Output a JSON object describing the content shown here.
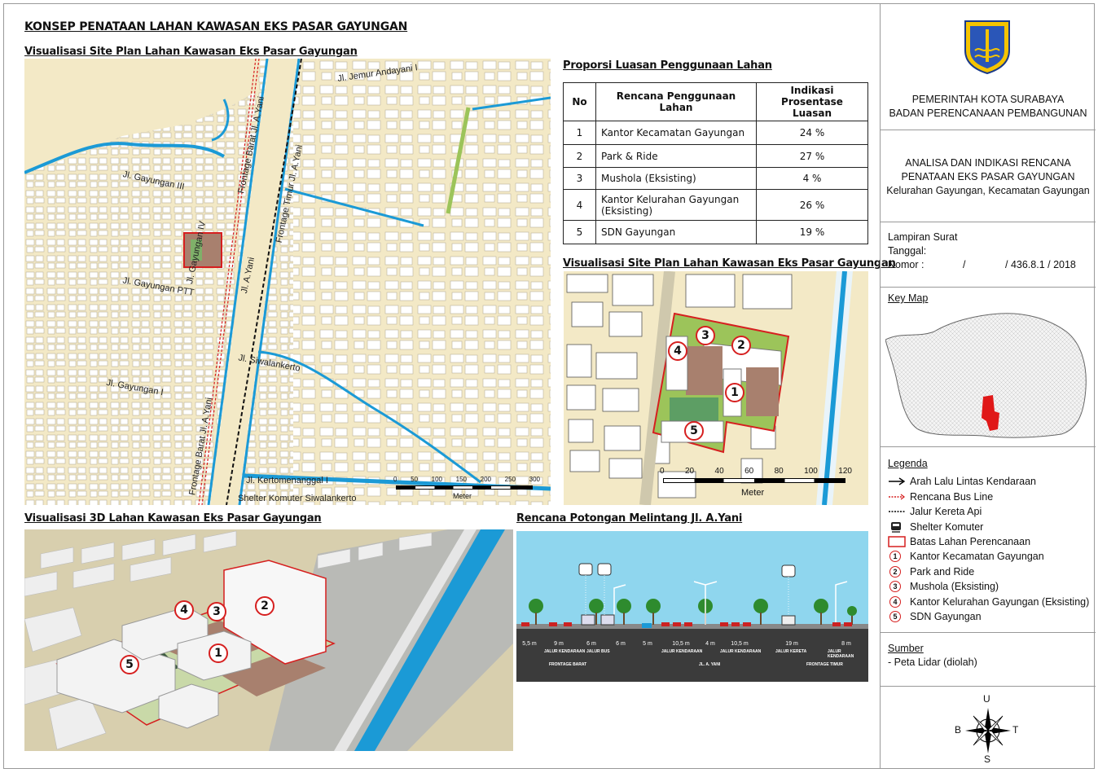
{
  "main_title": "KONSEP PENATAAN LAHAN KAWASAN EKS PASAR GAYUNGAN",
  "site_plan_title": "Visualisasi Site Plan Lahan Kawasan Eks Pasar Gayungan",
  "site_plan_detail_title": "Visualisasi Site Plan Lahan Kawasan Eks Pasar Gayungan",
  "viz3d_title": "Visualisasi 3D Lahan Kawasan Eks Pasar Gayungan",
  "section_title": "Rencana Potongan Melintang Jl. A.Yani",
  "table": {
    "title": "Proporsi Luasan Penggunaan Lahan",
    "headers": [
      "No",
      "Rencana Penggunaan Lahan",
      "Indikasi Prosentase Luasan"
    ],
    "rows": [
      {
        "no": "1",
        "use": "Kantor Kecamatan Gayungan",
        "pct": "24 %"
      },
      {
        "no": "2",
        "use": "Park & Ride",
        "pct": "27 %"
      },
      {
        "no": "3",
        "use": "Mushola (Eksisting)",
        "pct": "4 %"
      },
      {
        "no": "4",
        "use": "Kantor Kelurahan Gayungan (Eksisting)",
        "pct": "26 %"
      },
      {
        "no": "5",
        "use": "SDN Gayungan",
        "pct": "19 %"
      }
    ]
  },
  "street_labels": {
    "jemur": "Jl. Jemur Andayani I",
    "gayungan3": "Jl. Gayungan III",
    "frontage_barat_top": "Frontage Barat Jl. A.Yani",
    "frontage_timur": "Frontage Timur Jl. A.Yani",
    "gayungan4": "Jl. Gayungan IV",
    "gayungan_ptt": "Jl. Gayungan PTT",
    "ayani": "Jl. A.Yani",
    "siwalankerto": "Jl. Siwalankerto",
    "gayungan1": "Jl. Gayungan I",
    "frontage_barat_bottom": "Frontage Barat Jl. A.Yani",
    "kertomenanggal": "Jl. Kertomenanggal I",
    "shelter": "Shelter Komuter Siwalankerto"
  },
  "scale_small": {
    "ticks": [
      "0",
      "50",
      "100",
      "150",
      "200",
      "250",
      "300"
    ],
    "unit": "Meter"
  },
  "scale_detail": {
    "ticks": [
      "0",
      "20",
      "40",
      "60",
      "80",
      "100",
      "120"
    ],
    "unit": "Meter"
  },
  "parcel_numbers": [
    "1",
    "2",
    "3",
    "4",
    "5"
  ],
  "cross_section": {
    "widths": [
      "5,5 m",
      "9 m",
      "6 m",
      "6 m",
      "5 m",
      "10,5 m",
      "4 m",
      "10,5 m",
      "19 m",
      "8 m"
    ],
    "lanes": [
      "JALUR KENDARAAN",
      "JALUR BUS",
      "JALUR KENDARAAN",
      "JALUR KENDARAAN",
      "JALUR KERETA",
      "JALUR KENDARAAN"
    ],
    "zones": [
      "FRONTAGE BARAT",
      "JL. A. YANI",
      "FRONTAGE TIMUR"
    ]
  },
  "sidebar": {
    "agency_line1": "PEMERINTAH KOTA SURABAYA",
    "agency_line2": "BADAN PERENCANAAN PEMBANGUNAN",
    "doc_line1": "ANALISA DAN INDIKASI RENCANA",
    "doc_line2": "PENATAAN EKS PASAR GAYUNGAN",
    "doc_line3": "Kelurahan Gayungan, Kecamatan Gayungan",
    "lampiran": "Lampiran Surat",
    "tanggal": "Tanggal:",
    "nomor_label": "Nomor  :",
    "nomor_sep": "/",
    "nomor_value": "/ 436.8.1 / 2018",
    "keymap_title": "Key Map",
    "legend_title": "Legenda",
    "legend": [
      "Arah Lalu Lintas Kendaraan",
      "Rencana Bus Line",
      "Jalur Kereta Api",
      "Shelter Komuter",
      "Batas Lahan Perencanaan",
      "Kantor Kecamatan Gayungan",
      "Park and Ride",
      "Mushola (Eksisting)",
      "Kantor Kelurahan Gayungan (Eksisting)",
      "SDN Gayungan"
    ],
    "source_title": "Sumber",
    "source_text": "- Peta Lidar (diolah)",
    "compass": {
      "n": "U",
      "s": "S",
      "e": "T",
      "w": "B"
    }
  },
  "colors": {
    "road_base": "#f3e9c6",
    "block": "#ffffff",
    "water": "#1b9ad6",
    "boundary": "#d61f1f",
    "park": "#7fb069",
    "building_roof": "#a8806e"
  }
}
